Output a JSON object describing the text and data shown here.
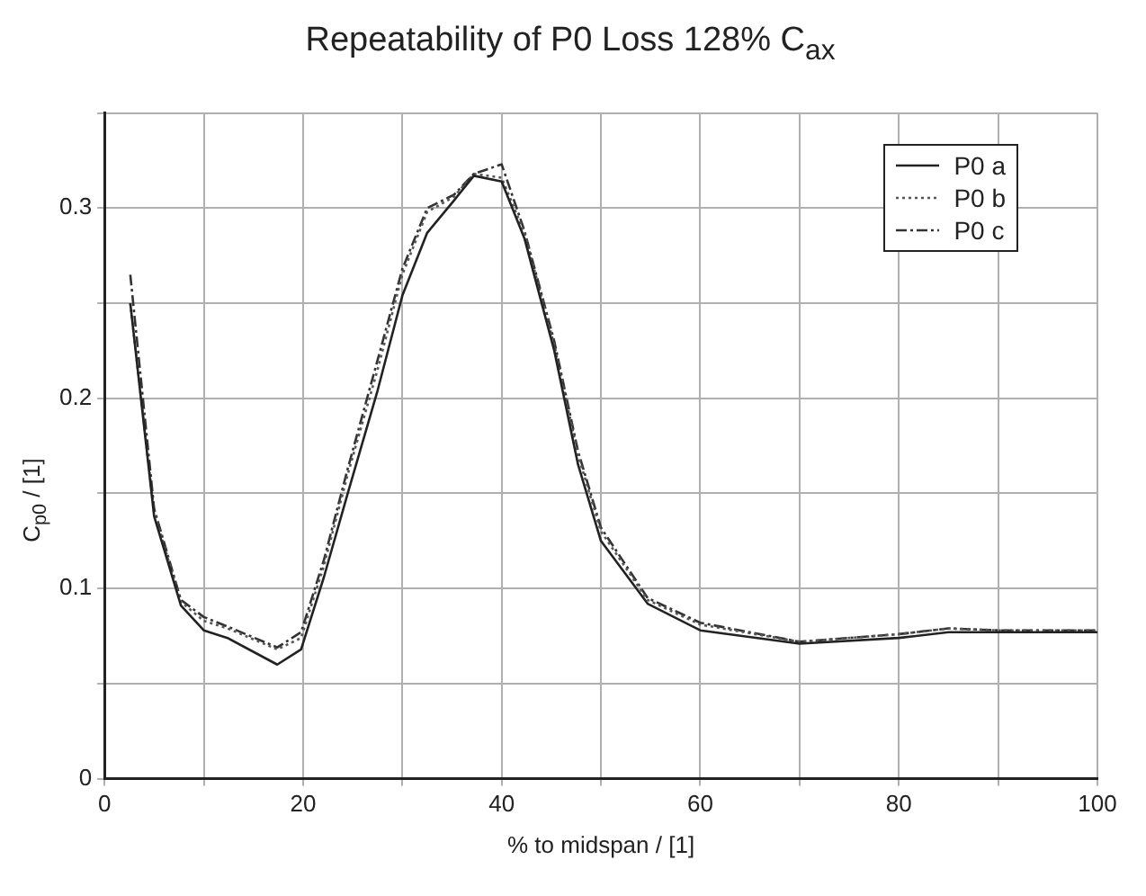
{
  "chart_data": {
    "type": "line",
    "title": "Repeatability of P0 Loss 128% C$_{ax}$",
    "xlabel": "% to midspan / [1]",
    "ylabel": "C$_{p0}$ / [1]",
    "x": [
      2.6,
      5,
      7.7,
      10,
      12.4,
      17.4,
      19.8,
      22.1,
      24.5,
      27.5,
      30,
      32.5,
      35.2,
      37.2,
      40,
      42.3,
      45.3,
      47.7,
      50,
      54.7,
      60,
      70,
      80,
      85,
      90,
      100
    ],
    "series": [
      {
        "name": "P0 a",
        "color": "#222222",
        "line_style": "solid",
        "values": [
          0.25,
          0.138,
          0.091,
          0.078,
          0.074,
          0.06,
          0.068,
          0.106,
          0.15,
          0.204,
          0.254,
          0.287,
          0.304,
          0.317,
          0.314,
          0.284,
          0.225,
          0.165,
          0.125,
          0.092,
          0.078,
          0.071,
          0.074,
          0.077,
          0.077,
          0.077
        ]
      },
      {
        "name": "P0 b",
        "color": "#555555",
        "line_style": "dotted",
        "values": [
          0.25,
          0.14,
          0.093,
          0.083,
          0.079,
          0.068,
          0.074,
          0.112,
          0.16,
          0.215,
          0.265,
          0.298,
          0.306,
          0.318,
          0.316,
          0.287,
          0.228,
          0.17,
          0.13,
          0.094,
          0.081,
          0.072,
          0.076,
          0.079,
          0.078,
          0.078
        ]
      },
      {
        "name": "P0 c",
        "color": "#333333",
        "line_style": "dashed",
        "values": [
          0.265,
          0.142,
          0.094,
          0.085,
          0.08,
          0.069,
          0.077,
          0.115,
          0.163,
          0.22,
          0.268,
          0.3,
          0.307,
          0.318,
          0.323,
          0.288,
          0.23,
          0.172,
          0.132,
          0.095,
          0.082,
          0.072,
          0.076,
          0.079,
          0.078,
          0.078
        ]
      }
    ],
    "xlim": [
      0,
      100
    ],
    "xticks": [
      0,
      {
        "value": 10,
        "label": null
      },
      20,
      {
        "value": 30,
        "label": null
      },
      40,
      {
        "value": 50,
        "label": null
      },
      60,
      {
        "value": 70,
        "label": null
      },
      80,
      {
        "value": 90,
        "label": null
      },
      100
    ],
    "ylim": [
      0,
      0.35
    ],
    "yticks": [
      0,
      {
        "value": 0.05,
        "label": null
      },
      0.1,
      {
        "value": 0.15,
        "label": null
      },
      0.2,
      {
        "value": 0.25,
        "label": null
      },
      0.3,
      {
        "value": 0.35,
        "label": null
      }
    ],
    "grid": true,
    "legend": "top right",
    "marker": "none"
  }
}
